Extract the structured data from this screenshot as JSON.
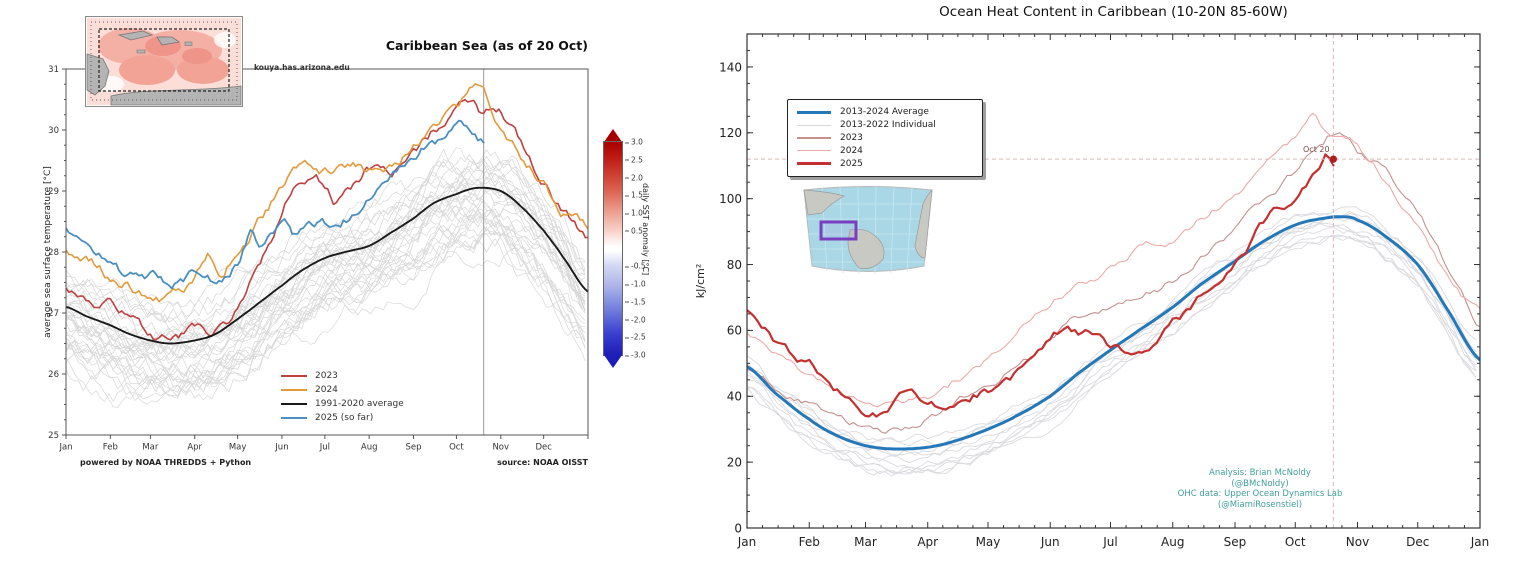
{
  "left_chart": {
    "title": "Caribbean Sea (as of 20 Oct)",
    "watermark": "kouya.has.arizona.edu",
    "ylabel": "average sea surface temperature [°C]",
    "legend": {
      "items": [
        {
          "label": "2023",
          "color": "#bf4040",
          "width": 2
        },
        {
          "label": "2024",
          "color": "#e39a3b",
          "width": 2
        },
        {
          "label": "1991-2020 average",
          "color": "#1a1a1a",
          "width": 2
        },
        {
          "label": "2025 (so far)",
          "color": "#4a8fc2",
          "width": 2
        }
      ]
    },
    "colorbar": {
      "label": "daily SST anomaly [°C]",
      "ticks": [
        "3.0",
        "2.5",
        "2.0",
        "1.5",
        "1.0",
        "0.5",
        "-0.5",
        "-1.0",
        "-1.5",
        "-2.0",
        "-2.5",
        "-3.0"
      ]
    },
    "footer_left": "powered by NOAA THREDDS + Python",
    "footer_right": "source: NOAA OISST"
  },
  "right_chart": {
    "title": "Ocean Heat Content in Caribbean (10-20N 85-60W)",
    "ylabel": "kJ/cm²",
    "legend": {
      "items": [
        {
          "label": "2013-2024 Average",
          "color": "#2478b8",
          "width": 3.5
        },
        {
          "label": "2013-2022 Individual",
          "color": "#d8d8dc",
          "width": 1.2
        },
        {
          "label": "2023",
          "color": "#c49090",
          "width": 1.2
        },
        {
          "label": "2024",
          "color": "#eeaaaa",
          "width": 1.2
        },
        {
          "label": "2025",
          "color": "#c43030",
          "width": 2.5
        }
      ]
    },
    "marker_label": "Oct 20",
    "credit_lines": [
      "Analysis: Brian McNoldy",
      "(@BMcNoldy)",
      "OHC data: Upper Ocean Dynamics Lab",
      "(@MiamiRosenstiel)"
    ]
  },
  "chart_data": [
    {
      "type": "line",
      "title": "Caribbean Sea (as of 20 Oct)",
      "xlabel": "",
      "ylabel": "average sea surface temperature [°C]",
      "xlim": [
        1,
        366
      ],
      "ylim": [
        25,
        31
      ],
      "yticks": [
        25,
        26,
        27,
        28,
        29,
        30,
        31
      ],
      "month_labels": [
        "Jan",
        "Feb",
        "Mar",
        "Apr",
        "May",
        "Jun",
        "Jul",
        "Aug",
        "Sep",
        "Oct",
        "Nov",
        "Dec"
      ],
      "grid": false,
      "legend_position": "lower-center-right",
      "vline_day": 293,
      "ensemble": {
        "name": "individual-historical-years",
        "count": 34,
        "seed_note": "unlabeled gray spaghetti of past years",
        "color": "#a8a8a8",
        "opacity": 0.45,
        "width": 0.7,
        "offset_range": [
          -0.9,
          0.55
        ],
        "walk": 0.3
      },
      "series": [
        {
          "name": "2023",
          "color": "#bf4040",
          "width": 1.6,
          "wiggle": 0.07,
          "x": [
            1,
            15,
            32,
            46,
            60,
            74,
            91,
            105,
            121,
            135,
            152,
            160,
            166,
            174,
            182,
            190,
            196,
            206,
            213,
            227,
            244,
            258,
            274,
            282,
            288,
            293,
            300,
            309,
            319,
            335,
            349,
            366
          ],
          "y": [
            27.35,
            27.3,
            27.15,
            26.9,
            26.65,
            26.55,
            26.65,
            26.7,
            27.0,
            27.7,
            28.55,
            29.0,
            29.1,
            29.3,
            29.1,
            28.85,
            28.95,
            29.1,
            29.3,
            29.3,
            29.6,
            30.0,
            30.35,
            30.5,
            30.4,
            30.3,
            30.45,
            30.2,
            29.85,
            29.2,
            28.7,
            28.25
          ]
        },
        {
          "name": "2024",
          "color": "#e39a3b",
          "width": 1.6,
          "wiggle": 0.07,
          "x": [
            1,
            15,
            32,
            46,
            60,
            74,
            91,
            100,
            108,
            121,
            135,
            152,
            166,
            182,
            196,
            213,
            227,
            244,
            258,
            274,
            285,
            293,
            305,
            319,
            335,
            349,
            366
          ],
          "y": [
            28.1,
            27.9,
            27.6,
            27.45,
            27.3,
            27.3,
            27.5,
            27.95,
            27.6,
            28.05,
            28.5,
            29.05,
            29.35,
            29.25,
            29.45,
            29.3,
            29.4,
            29.75,
            30.1,
            30.3,
            30.65,
            30.55,
            30.05,
            29.6,
            29.1,
            28.65,
            28.45
          ]
        },
        {
          "name": "1991-2020 average",
          "color": "#1a1a1a",
          "width": 1.9,
          "wiggle": 0,
          "baseline": true,
          "x": [
            1,
            15,
            32,
            46,
            60,
            74,
            91,
            105,
            121,
            135,
            152,
            166,
            182,
            196,
            213,
            227,
            244,
            258,
            274,
            288,
            305,
            319,
            335,
            349,
            366
          ],
          "y": [
            27.1,
            26.95,
            26.8,
            26.65,
            26.55,
            26.5,
            26.55,
            26.65,
            26.9,
            27.15,
            27.45,
            27.7,
            27.9,
            28.0,
            28.1,
            28.3,
            28.55,
            28.8,
            28.95,
            29.05,
            29.0,
            28.75,
            28.35,
            27.9,
            27.35
          ]
        },
        {
          "name": "2025 (so far)",
          "color": "#4a8fc2",
          "width": 1.8,
          "wiggle": 0.07,
          "x": [
            1,
            10,
            20,
            32,
            46,
            60,
            69,
            79,
            91,
            100,
            110,
            121,
            130,
            138,
            152,
            161,
            171,
            182,
            191,
            201,
            213,
            222,
            232,
            244,
            253,
            263,
            274,
            281,
            287,
            293
          ],
          "y": [
            28.45,
            28.15,
            27.95,
            27.75,
            27.55,
            27.6,
            27.45,
            27.5,
            27.65,
            27.5,
            27.55,
            27.85,
            28.3,
            28.05,
            28.5,
            28.3,
            28.55,
            28.45,
            28.55,
            28.65,
            28.95,
            29.2,
            29.45,
            29.5,
            29.7,
            29.85,
            30.0,
            30.05,
            29.95,
            29.85
          ]
        }
      ],
      "colorbar": {
        "label": "daily SST anomaly [°C]",
        "range": [
          -3.0,
          3.0
        ],
        "ticks": [
          3.0,
          2.5,
          2.0,
          1.5,
          1.0,
          0.5,
          -0.5,
          -1.0,
          -1.5,
          -2.0,
          -2.5,
          -3.0
        ]
      }
    },
    {
      "type": "line",
      "title": "Ocean Heat Content in Caribbean (10-20N 85-60W)",
      "xlabel": "",
      "ylabel": "kJ/cm²",
      "xlim": [
        1,
        366
      ],
      "ylim": [
        0,
        150
      ],
      "yticks": [
        0,
        20,
        40,
        60,
        80,
        100,
        120,
        140
      ],
      "month_labels": [
        "Jan",
        "Feb",
        "Mar",
        "Apr",
        "May",
        "Jun",
        "Jul",
        "Aug",
        "Sep",
        "Oct",
        "Nov",
        "Dec",
        "Jan"
      ],
      "grid": false,
      "legend_position": "upper-left",
      "crosshair": {
        "day": 293,
        "value": 112
      },
      "marker": {
        "day": 293,
        "value": 112,
        "label": "Oct 20"
      },
      "ensemble": {
        "name": "2013-2022 Individual",
        "count": 10,
        "color": "#c3c3cb",
        "opacity": 0.6,
        "width": 0.9,
        "offset_range": [
          -9,
          4
        ],
        "walk": 2.6
      },
      "series": [
        {
          "name": "2023",
          "color": "#c49090",
          "width": 1.1,
          "wiggle": 1.0,
          "x": [
            1,
            15,
            32,
            46,
            60,
            74,
            91,
            105,
            121,
            135,
            152,
            166,
            182,
            196,
            213,
            227,
            244,
            258,
            274,
            288,
            296,
            305,
            319,
            335,
            349,
            366
          ],
          "y": [
            48,
            42,
            37,
            33,
            31,
            30,
            33,
            38,
            44,
            50,
            57,
            63,
            66,
            70,
            75,
            82,
            90,
            99,
            108,
            117,
            120,
            115,
            108,
            96,
            80,
            62
          ]
        },
        {
          "name": "2024",
          "color": "#eeaaaa",
          "width": 1.1,
          "wiggle": 1.0,
          "x": [
            1,
            15,
            32,
            46,
            60,
            74,
            91,
            105,
            121,
            135,
            152,
            166,
            182,
            196,
            213,
            227,
            244,
            258,
            274,
            281,
            288,
            305,
            319,
            335,
            349,
            366
          ],
          "y": [
            60,
            52,
            46,
            42,
            39,
            37,
            40,
            45,
            52,
            60,
            68,
            74,
            79,
            84,
            88,
            94,
            101,
            109,
            118,
            126,
            122,
            116,
            105,
            92,
            78,
            66
          ]
        },
        {
          "name": "2013-2024 Average",
          "color": "#2478b8",
          "width": 3,
          "wiggle": 0,
          "baseline": true,
          "x": [
            1,
            15,
            32,
            46,
            60,
            74,
            91,
            105,
            121,
            135,
            152,
            166,
            182,
            196,
            213,
            227,
            244,
            258,
            274,
            288,
            298,
            305,
            319,
            335,
            349,
            366
          ],
          "y": [
            49,
            41,
            33,
            28,
            25,
            24,
            24.5,
            26.5,
            30,
            34,
            40,
            47,
            54,
            60,
            67,
            74,
            81,
            87,
            92,
            94,
            94.5,
            93.5,
            88.5,
            80,
            67,
            51
          ]
        },
        {
          "name": "2025",
          "color": "#c43030",
          "width": 2.2,
          "wiggle": 1.3,
          "x": [
            1,
            10,
            20,
            32,
            46,
            60,
            69,
            79,
            91,
            100,
            110,
            121,
            130,
            140,
            152,
            159,
            166,
            173,
            182,
            189,
            196,
            203,
            213,
            220,
            227,
            234,
            244,
            251,
            258,
            265,
            274,
            281,
            286,
            289,
            293
          ],
          "y": [
            66,
            60,
            54,
            50,
            42,
            36,
            34.5,
            40,
            38,
            35,
            41,
            42,
            45,
            50,
            57,
            60,
            58,
            60,
            56,
            55,
            56,
            58,
            62,
            66,
            71,
            76,
            82,
            87,
            92,
            96,
            101,
            107,
            112,
            114.5,
            112
          ]
        }
      ]
    }
  ]
}
